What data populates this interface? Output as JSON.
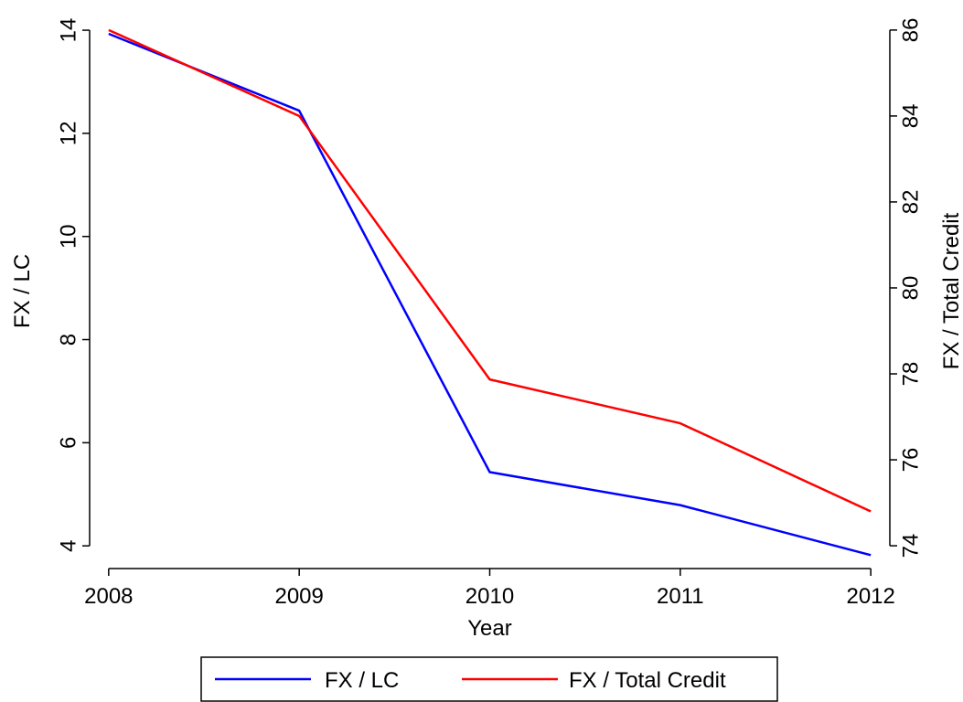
{
  "chart_data": {
    "type": "line",
    "x_label": "Year",
    "y_label": "FX / LC",
    "y2_label": "FX / Total Credit",
    "x": [
      2008,
      2009,
      2010,
      2011,
      2012
    ],
    "xlim": [
      2007.9,
      2012.1
    ],
    "xticks": [
      2008,
      2009,
      2010,
      2011,
      2012
    ],
    "ylim": [
      3.56,
      14.32
    ],
    "yticks": [
      4,
      6,
      8,
      10,
      12,
      14
    ],
    "y2lim": [
      73.47,
      86.38
    ],
    "y2ticks": [
      74,
      76,
      78,
      80,
      82,
      84,
      86
    ],
    "series": [
      {
        "name": "FX / LC",
        "color": "#0000ff",
        "values": [
          13.93,
          12.44,
          5.43,
          4.79,
          3.82
        ]
      },
      {
        "name": "FX / Total Credit",
        "color": "#ff0000",
        "axis": "y2",
        "values": [
          86.0,
          84.0,
          77.87,
          76.85,
          74.8
        ]
      }
    ],
    "legend": "bottom"
  }
}
